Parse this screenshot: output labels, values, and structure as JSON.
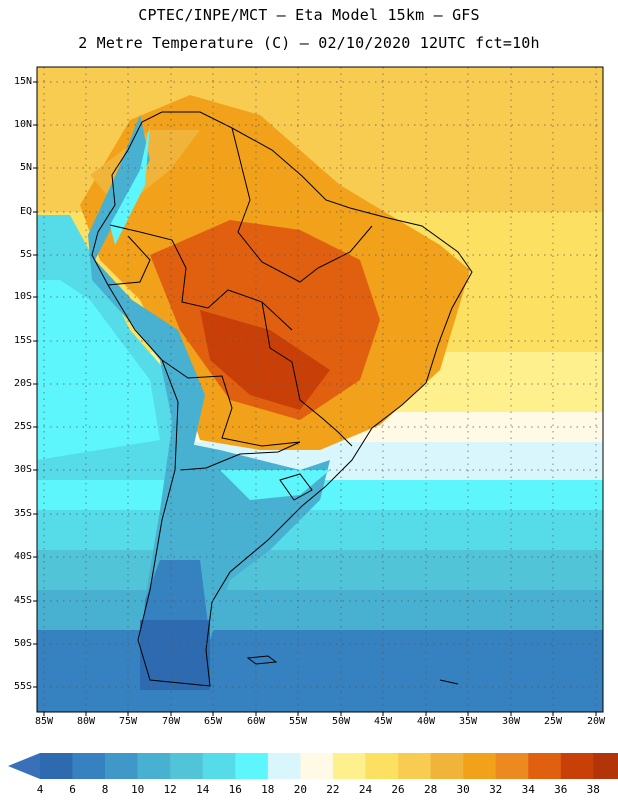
{
  "header": {
    "line1": "CPTEC/INPE/MCT –  Eta Model 15km – GFS",
    "line2": "2 Metre Temperature (C) – 02/10/2020 12UTC fct=10h"
  },
  "map": {
    "lat_labels": [
      "15N",
      "10N",
      "5N",
      "EQ",
      "5S",
      "10S",
      "15S",
      "20S",
      "25S",
      "30S",
      "35S",
      "40S",
      "45S",
      "50S",
      "55S"
    ],
    "lon_labels": [
      "85W",
      "80W",
      "75W",
      "70W",
      "65W",
      "60W",
      "55W",
      "50W",
      "45W",
      "40W",
      "35W",
      "30W",
      "25W",
      "20W"
    ]
  },
  "colorbar": {
    "colors": [
      "#2d6ab0",
      "#3682c0",
      "#3f98c8",
      "#48b0d0",
      "#52c4d8",
      "#56dce8",
      "#5cf6fc",
      "#d8f6fc",
      "#fefae6",
      "#fef08c",
      "#fce062",
      "#f8cc50",
      "#f0b43a",
      "#f2a21a",
      "#ec8a20",
      "#e06010",
      "#c84008",
      "#b23408"
    ],
    "end_left": "#3a70b8",
    "end_right": "#a22e06",
    "labels": [
      "4",
      "6",
      "8",
      "10",
      "12",
      "14",
      "16",
      "18",
      "20",
      "22",
      "24",
      "26",
      "28",
      "30",
      "32",
      "34",
      "36",
      "38"
    ]
  }
}
